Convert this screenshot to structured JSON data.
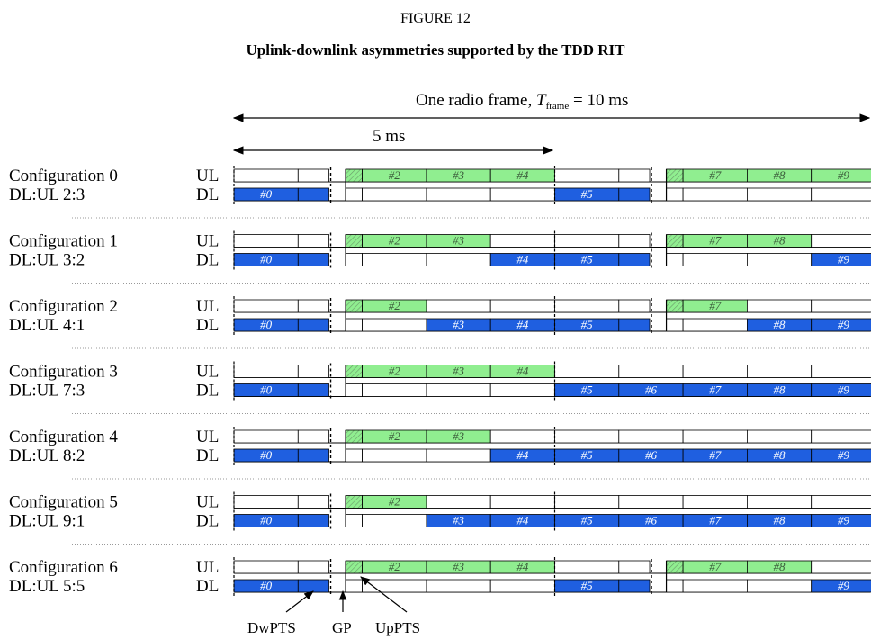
{
  "figure": {
    "label": "FIGURE 12",
    "title": "Uplink-downlink asymmetries supported by the TDD RIT"
  },
  "frame_label": {
    "prefix": "One radio frame, ",
    "symbol": "T",
    "subscript": "frame",
    "suffix": " = 10 ms"
  },
  "half_frame_label": "5 ms",
  "link_labels": {
    "ul": "UL",
    "dl": "DL"
  },
  "colors": {
    "downlink": "#1f5fe0",
    "uplink": "#90ee90",
    "empty": "#ffffff",
    "outline": "#000000"
  },
  "special_labels": {
    "dwpts": "DwPTS",
    "gp": "GP",
    "uppts": "UpPTS"
  },
  "configurations": [
    {
      "name": "Configuration 0",
      "ratio": "DL:UL 2:3",
      "pattern": [
        "D",
        "S",
        "U",
        "U",
        "U",
        "D",
        "S",
        "U",
        "U",
        "U"
      ]
    },
    {
      "name": "Configuration 1",
      "ratio": "DL:UL 3:2",
      "pattern": [
        "D",
        "S",
        "U",
        "U",
        "D",
        "D",
        "S",
        "U",
        "U",
        "D"
      ]
    },
    {
      "name": "Configuration 2",
      "ratio": "DL:UL 4:1",
      "pattern": [
        "D",
        "S",
        "U",
        "D",
        "D",
        "D",
        "S",
        "U",
        "D",
        "D"
      ]
    },
    {
      "name": "Configuration 3",
      "ratio": "DL:UL 7:3",
      "pattern": [
        "D",
        "S",
        "U",
        "U",
        "U",
        "D",
        "D",
        "D",
        "D",
        "D"
      ]
    },
    {
      "name": "Configuration 4",
      "ratio": "DL:UL 8:2",
      "pattern": [
        "D",
        "S",
        "U",
        "U",
        "D",
        "D",
        "D",
        "D",
        "D",
        "D"
      ]
    },
    {
      "name": "Configuration 5",
      "ratio": "DL:UL 9:1",
      "pattern": [
        "D",
        "S",
        "U",
        "D",
        "D",
        "D",
        "D",
        "D",
        "D",
        "D"
      ]
    },
    {
      "name": "Configuration 6",
      "ratio": "DL:UL 5:5",
      "pattern": [
        "D",
        "S",
        "U",
        "U",
        "U",
        "D",
        "S",
        "U",
        "U",
        "D"
      ]
    }
  ]
}
